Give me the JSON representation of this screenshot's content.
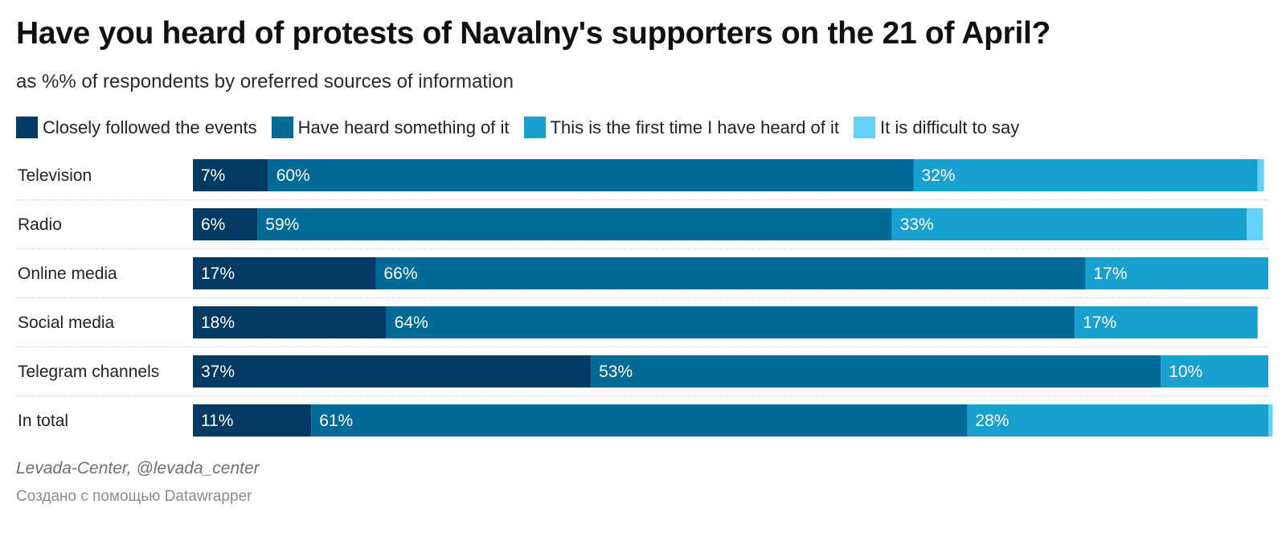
{
  "title": "Have you heard of protests of Navalny's supporters on the 21 of April?",
  "subtitle": "as %% of respondents by oreferred sources of information",
  "source": "Levada-Center, @levada_center",
  "credit": "Создано с помощью Datawrapper",
  "chart_data": {
    "type": "bar",
    "orientation": "horizontal",
    "stacked": true,
    "categories": [
      "Television",
      "Radio",
      "Online media",
      "Social media",
      "Telegram channels",
      "In total"
    ],
    "series": [
      {
        "name": "Closely followed the events",
        "color": "#013a63",
        "values": [
          7,
          6,
          17,
          18,
          37,
          11
        ],
        "labels": [
          "7%",
          "6%",
          "17%",
          "18%",
          "37%",
          "11%"
        ]
      },
      {
        "name": "Have heard something of it",
        "color": "#016a96",
        "values": [
          60,
          59,
          66,
          64,
          53,
          61
        ],
        "labels": [
          "60%",
          "59%",
          "66%",
          "64%",
          "53%",
          "61%"
        ]
      },
      {
        "name": "This is the first time I have heard of it",
        "color": "#18a1cf",
        "values": [
          32,
          33,
          17,
          17,
          10,
          28
        ],
        "labels": [
          "32%",
          "33%",
          "17%",
          "17%",
          "10%",
          "28%"
        ]
      },
      {
        "name": "It is difficult to say",
        "color": "#62d2f8",
        "values": [
          0.6,
          1.5,
          0,
          0,
          0,
          0.4
        ],
        "labels": [
          "",
          "",
          "",
          "",
          "",
          ""
        ]
      }
    ],
    "xlim": [
      0,
      100
    ],
    "legend": "top",
    "grid": false
  }
}
